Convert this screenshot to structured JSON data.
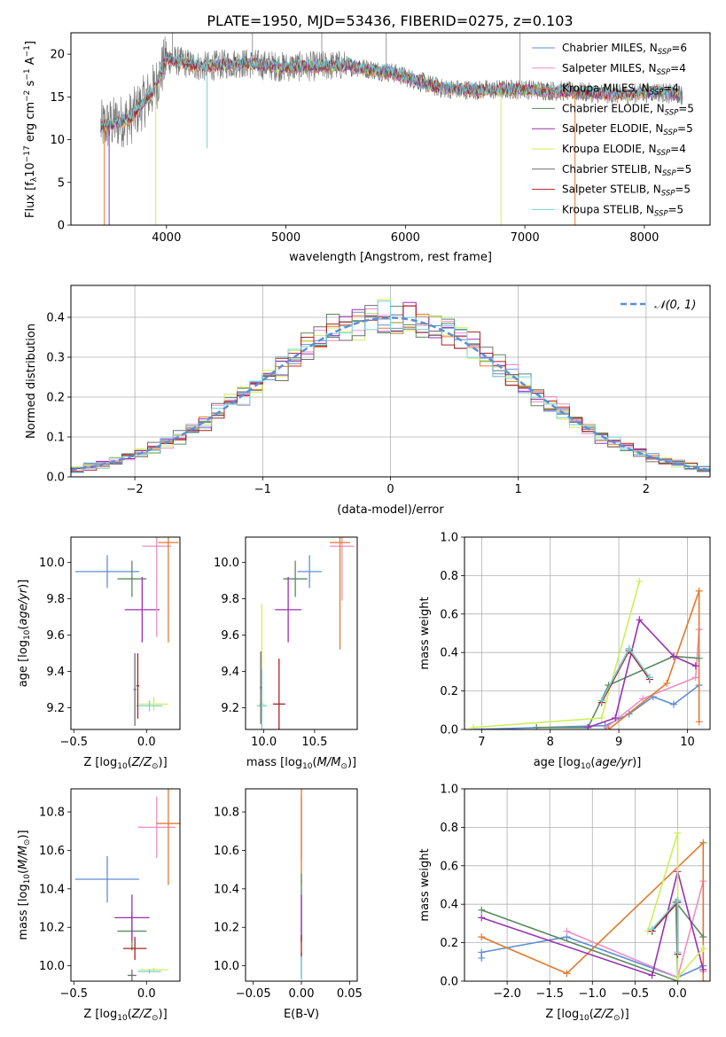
{
  "title": "PLATE=1950, MJD=53436, FIBERID=0275, z=0.103",
  "colors": {
    "Chabrier MILES": "#5f8fd6",
    "Salpeter MILES": "#ef8ec4",
    "Kroupa MILES": "#e27a2d",
    "Chabrier ELODIE": "#5b8a5f",
    "Salpeter ELODIE": "#9a31b1",
    "Kroupa ELODIE": "#cfee5c",
    "Chabrier STELIB": "#6e6e6e",
    "Salpeter STELIB": "#a82222",
    "Kroupa STELIB": "#74d0dc"
  },
  "legend_spectrum": [
    {
      "label": "Chabrier MILES, N",
      "sub": "SSP",
      "suffix": "=6",
      "model": "Chabrier MILES"
    },
    {
      "label": "Salpeter MILES, N",
      "sub": "SSP",
      "suffix": "=4",
      "model": "Salpeter MILES"
    },
    {
      "label": "Kroupa MILES, N",
      "sub": "SSP",
      "suffix": "=4",
      "model": "Kroupa MILES"
    },
    {
      "label": "Chabrier ELODIE, N",
      "sub": "SSP",
      "suffix": "=5",
      "model": "Chabrier ELODIE"
    },
    {
      "label": "Salpeter ELODIE, N",
      "sub": "SSP",
      "suffix": "=5",
      "model": "Salpeter ELODIE"
    },
    {
      "label": "Kroupa ELODIE, N",
      "sub": "SSP",
      "suffix": "=4",
      "model": "Kroupa ELODIE"
    },
    {
      "label": "Chabrier STELIB, N",
      "sub": "SSP",
      "suffix": "=5",
      "model": "Chabrier STELIB"
    },
    {
      "label": "Salpeter STELIB, N",
      "sub": "SSP",
      "suffix": "=5",
      "model": "Salpeter STELIB"
    },
    {
      "label": "Kroupa STELIB, N",
      "sub": "SSP",
      "suffix": "=5",
      "model": "Kroupa STELIB"
    }
  ],
  "chart_data": [
    {
      "id": "spectrum",
      "type": "line",
      "xlabel": "wavelength [Angstrom, rest frame]",
      "ylabel": "Flux [f_λ 10^-17 erg cm^-2 s^-1 A^-1]",
      "xlim": [
        3200,
        8550
      ],
      "ylim": [
        0,
        22.5
      ],
      "xticks": [
        4000,
        5000,
        6000,
        7000,
        8000
      ],
      "yticks": [
        0,
        5,
        10,
        15,
        20
      ],
      "continuum": [
        [
          3450,
          11.5
        ],
        [
          3700,
          12.5
        ],
        [
          3900,
          16
        ],
        [
          4000,
          19.5
        ],
        [
          4300,
          18.5
        ],
        [
          4600,
          19
        ],
        [
          5000,
          18.5
        ],
        [
          5500,
          18.7
        ],
        [
          5900,
          17.8
        ],
        [
          6300,
          16
        ],
        [
          6600,
          15.8
        ],
        [
          7000,
          15.9
        ],
        [
          7400,
          15.6
        ],
        [
          7800,
          15.3
        ],
        [
          8100,
          15.6
        ],
        [
          8300,
          15.2
        ]
      ],
      "spikes_down": [
        [
          3480,
          0
        ],
        [
          3520,
          0
        ],
        [
          3910,
          0
        ],
        [
          4340,
          9
        ],
        [
          6800,
          0
        ],
        [
          7420,
          0
        ]
      ],
      "spikes_up": [
        [
          4050,
          22.5
        ],
        [
          4720,
          22.5
        ],
        [
          5300,
          22.5
        ],
        [
          5840,
          22.5
        ],
        [
          6960,
          22.5
        ]
      ],
      "grid": false
    },
    {
      "id": "residuals",
      "type": "histogram",
      "xlabel": "(data-model)/error",
      "ylabel": "Normed distribution",
      "xlim": [
        -2.5,
        2.5
      ],
      "ylim": [
        0,
        0.48
      ],
      "xticks": [
        -2,
        -1,
        0,
        1,
        2
      ],
      "yticks": [
        0.0,
        0.1,
        0.2,
        0.3,
        0.4
      ],
      "bin_width": 0.1,
      "gaussian_label": "𝒩(0, 1)",
      "gaussian_color": "#5b8fd6",
      "legend": "top-right",
      "grid": true
    },
    {
      "id": "age_vs_Z",
      "type": "scatter",
      "xlabel": "Z [log10(Z/Z⊙)]",
      "ylabel": "age [log10(age/yr)]",
      "xlim": [
        -0.52,
        0.23
      ],
      "ylim": [
        9.08,
        10.14
      ],
      "xticks": [
        -0.5,
        0.0
      ],
      "yticks": [
        9.2,
        9.4,
        9.6,
        9.8,
        10.0
      ],
      "points": [
        {
          "model": "Chabrier MILES",
          "x": -0.27,
          "xerr": 0.22,
          "y": 9.95,
          "yerr": 0.09
        },
        {
          "model": "Chabrier ELODIE",
          "x": -0.1,
          "xerr": 0.1,
          "y": 9.91,
          "yerr": 0.1
        },
        {
          "model": "Salpeter ELODIE",
          "x": -0.03,
          "xerr": 0.12,
          "y": 9.74,
          "yerr": 0.18
        },
        {
          "model": "Salpeter MILES",
          "x": 0.07,
          "xerr": 0.1,
          "y": 10.09,
          "yerr": 0.5
        },
        {
          "model": "Kroupa MILES",
          "x": 0.15,
          "xerr": 0.07,
          "y": 10.11,
          "yerr": 0.55
        },
        {
          "model": "Kroupa ELODIE",
          "x": 0.05,
          "xerr": 0.1,
          "y": 9.22,
          "yerr": 0.04
        },
        {
          "model": "Kroupa STELIB",
          "x": 0.02,
          "xerr": 0.09,
          "y": 9.21,
          "yerr": 0.03
        },
        {
          "model": "Chabrier STELIB",
          "x": -0.08,
          "xerr": 0.01,
          "y": 9.3,
          "yerr": 0.2
        },
        {
          "model": "Salpeter STELIB",
          "x": -0.06,
          "xerr": 0.01,
          "y": 9.32,
          "yerr": 0.18
        }
      ]
    },
    {
      "id": "age_vs_mass",
      "type": "scatter",
      "xlabel": "mass [log10(M/M⊙)]",
      "ylabel": "",
      "xlim": [
        9.82,
        10.92
      ],
      "ylim": [
        9.08,
        10.14
      ],
      "xticks": [
        10.0,
        10.5
      ],
      "yticks": [
        9.2,
        9.4,
        9.6,
        9.8,
        10.0
      ],
      "points": [
        {
          "model": "Chabrier MILES",
          "x": 10.45,
          "xerr": 0.12,
          "y": 9.95,
          "yerr": 0.09
        },
        {
          "model": "Chabrier ELODIE",
          "x": 10.31,
          "xerr": 0.12,
          "y": 9.91,
          "yerr": 0.1
        },
        {
          "model": "Salpeter ELODIE",
          "x": 10.24,
          "xerr": 0.13,
          "y": 9.74,
          "yerr": 0.18
        },
        {
          "model": "Salpeter MILES",
          "x": 10.77,
          "xerr": 0.12,
          "y": 10.09,
          "yerr": 0.3
        },
        {
          "model": "Kroupa MILES",
          "x": 10.75,
          "xerr": 0.1,
          "y": 10.11,
          "yerr": 0.59
        },
        {
          "model": "Kroupa ELODIE",
          "x": 9.98,
          "xerr": 0.03,
          "y": 9.22,
          "yerr": 0.55
        },
        {
          "model": "Kroupa STELIB",
          "x": 9.98,
          "xerr": 0.05,
          "y": 9.21,
          "yerr": 0.2
        },
        {
          "model": "Chabrier STELIB",
          "x": 9.97,
          "xerr": 0.01,
          "y": 9.31,
          "yerr": 0.2
        },
        {
          "model": "Salpeter STELIB",
          "x": 10.15,
          "xerr": 0.06,
          "y": 9.22,
          "yerr": 0.25
        }
      ]
    },
    {
      "id": "massweight_vs_age",
      "type": "line",
      "xlabel": "age [log10(age/yr)]",
      "ylabel": "mass weight",
      "xlim": [
        6.75,
        10.33
      ],
      "ylim": [
        0,
        1
      ],
      "xticks": [
        7,
        8,
        9,
        10
      ],
      "yticks": [
        0.0,
        0.2,
        0.4,
        0.6,
        0.8,
        1.0
      ],
      "grid": true,
      "series": [
        {
          "model": "Chabrier MILES",
          "points": [
            [
              6.88,
              0.0
            ],
            [
              8.8,
              0.02
            ],
            [
              9.15,
              0.08
            ],
            [
              9.5,
              0.17
            ],
            [
              9.8,
              0.13
            ],
            [
              10.17,
              0.23
            ]
          ]
        },
        {
          "model": "Salpeter MILES",
          "points": [
            [
              8.82,
              0.01
            ],
            [
              9.35,
              0.16
            ],
            [
              10.12,
              0.27
            ],
            [
              10.17,
              0.52
            ]
          ]
        },
        {
          "model": "Kroupa MILES",
          "points": [
            [
              8.85,
              0.0
            ],
            [
              9.7,
              0.24
            ],
            [
              10.17,
              0.72
            ],
            [
              10.17,
              0.04
            ]
          ]
        },
        {
          "model": "Chabrier ELODIE",
          "points": [
            [
              7.8,
              0.01
            ],
            [
              8.55,
              0.01
            ],
            [
              8.85,
              0.23
            ],
            [
              9.8,
              0.38
            ],
            [
              10.17,
              0.37
            ]
          ]
        },
        {
          "model": "Salpeter ELODIE",
          "points": [
            [
              8.55,
              0.01
            ],
            [
              8.95,
              0.06
            ],
            [
              9.3,
              0.57
            ],
            [
              9.8,
              0.38
            ],
            [
              10.12,
              0.33
            ]
          ]
        },
        {
          "model": "Kroupa ELODIE",
          "points": [
            [
              6.88,
              0.01
            ],
            [
              8.75,
              0.06
            ],
            [
              9.3,
              0.77
            ]
          ]
        },
        {
          "model": "Chabrier STELIB",
          "points": [
            [
              8.75,
              0.15
            ],
            [
              9.15,
              0.42
            ],
            [
              9.45,
              0.27
            ]
          ]
        },
        {
          "model": "Salpeter STELIB",
          "points": [
            [
              8.75,
              0.14
            ],
            [
              9.15,
              0.41
            ],
            [
              9.45,
              0.26
            ]
          ]
        },
        {
          "model": "Kroupa STELIB",
          "points": [
            [
              8.75,
              0.15
            ],
            [
              9.15,
              0.42
            ],
            [
              9.45,
              0.27
            ]
          ]
        }
      ]
    },
    {
      "id": "mass_vs_Z",
      "type": "scatter",
      "xlabel": "Z [log10(Z/Z⊙)]",
      "ylabel": "mass [log10(M/M⊙)]",
      "xlim": [
        -0.52,
        0.23
      ],
      "ylim": [
        9.92,
        10.92
      ],
      "xticks": [
        -0.5,
        0.0
      ],
      "yticks": [
        10.0,
        10.2,
        10.4,
        10.6,
        10.8
      ],
      "points": [
        {
          "model": "Chabrier MILES",
          "x": -0.27,
          "xerr": 0.22,
          "y": 10.45,
          "yerr": 0.12
        },
        {
          "model": "Chabrier ELODIE",
          "x": -0.1,
          "xerr": 0.1,
          "y": 10.18,
          "yerr": 0.1
        },
        {
          "model": "Salpeter ELODIE",
          "x": -0.1,
          "xerr": 0.12,
          "y": 10.25,
          "yerr": 0.12
        },
        {
          "model": "Salpeter MILES",
          "x": 0.07,
          "xerr": 0.13,
          "y": 10.72,
          "yerr": 0.16
        },
        {
          "model": "Kroupa MILES",
          "x": 0.15,
          "xerr": 0.08,
          "y": 10.74,
          "yerr": 0.32
        },
        {
          "model": "Kroupa ELODIE",
          "x": 0.05,
          "xerr": 0.1,
          "y": 9.98,
          "yerr": 0.01
        },
        {
          "model": "Kroupa STELIB",
          "x": 0.02,
          "xerr": 0.08,
          "y": 9.97,
          "yerr": 0.01
        },
        {
          "model": "Chabrier STELIB",
          "x": -0.1,
          "xerr": 0.03,
          "y": 9.95,
          "yerr": 0.03
        },
        {
          "model": "Salpeter STELIB",
          "x": -0.08,
          "xerr": 0.08,
          "y": 10.09,
          "yerr": 0.06
        }
      ]
    },
    {
      "id": "mass_vs_EBV",
      "type": "scatter",
      "xlabel": "E(B-V)",
      "ylabel": "",
      "xlim": [
        -0.058,
        0.058
      ],
      "ylim": [
        9.92,
        10.92
      ],
      "xticks": [
        -0.05,
        0.0,
        0.05
      ],
      "yticks": [
        10.0,
        10.2,
        10.4,
        10.6,
        10.8
      ],
      "points": [
        {
          "model": "Salpeter MILES",
          "x": 0.0,
          "y": 10.72,
          "yerr": 0.17
        },
        {
          "model": "Kroupa MILES",
          "x": 0.0,
          "y": 10.74,
          "yerr": 0.32
        },
        {
          "model": "Chabrier ELODIE",
          "x": 0.0,
          "y": 10.3,
          "yerr": 0.18
        },
        {
          "model": "Salpeter ELODIE",
          "x": 0.0,
          "y": 10.25,
          "yerr": 0.12
        },
        {
          "model": "Chabrier STELIB",
          "x": 0.0,
          "y": 10.0,
          "yerr": 0.07
        },
        {
          "model": "Salpeter STELIB",
          "x": 0.0,
          "y": 10.1,
          "yerr": 0.06
        },
        {
          "model": "Kroupa STELIB",
          "x": 0.0,
          "y": 9.99,
          "yerr": 0.06
        }
      ]
    },
    {
      "id": "massweight_vs_Z",
      "type": "line",
      "xlabel": "Z [log10(Z/Z⊙)]",
      "ylabel": "mass weight",
      "xlim": [
        -2.5,
        0.38
      ],
      "ylim": [
        0,
        1
      ],
      "xticks": [
        -2.0,
        -1.5,
        -1.0,
        -0.5,
        0.0
      ],
      "yticks": [
        0.0,
        0.2,
        0.4,
        0.6,
        0.8,
        1.0
      ],
      "grid": true,
      "series": [
        {
          "model": "Chabrier MILES",
          "points": [
            [
              -2.3,
              0.12
            ],
            [
              -2.3,
              0.15
            ],
            [
              -1.3,
              0.23
            ],
            [
              0.0,
              0.02
            ],
            [
              0.3,
              0.08
            ]
          ]
        },
        {
          "model": "Salpeter MILES",
          "points": [
            [
              -1.3,
              0.26
            ],
            [
              0.0,
              0.02
            ],
            [
              0.3,
              0.52
            ],
            [
              0.3,
              0.05
            ]
          ]
        },
        {
          "model": "Kroupa MILES",
          "points": [
            [
              -2.3,
              0.23
            ],
            [
              -1.3,
              0.04
            ],
            [
              0.3,
              0.72
            ],
            [
              0.3,
              0.0
            ]
          ]
        },
        {
          "model": "Chabrier ELODIE",
          "points": [
            [
              -2.3,
              0.37
            ],
            [
              0.0,
              0.0
            ],
            [
              -0.02,
              0.41
            ],
            [
              0.3,
              0.23
            ]
          ]
        },
        {
          "model": "Salpeter ELODIE",
          "points": [
            [
              -2.3,
              0.33
            ],
            [
              -0.3,
              0.03
            ],
            [
              0.0,
              0.57
            ],
            [
              0.3,
              0.06
            ]
          ]
        },
        {
          "model": "Kroupa ELODIE",
          "points": [
            [
              -0.35,
              0.26
            ],
            [
              0.0,
              0.77
            ],
            [
              0.0,
              0.02
            ],
            [
              0.3,
              0.17
            ]
          ]
        },
        {
          "model": "Chabrier STELIB",
          "points": [
            [
              -0.3,
              0.26
            ],
            [
              0.0,
              0.42
            ],
            [
              0.0,
              0.15
            ]
          ]
        },
        {
          "model": "Salpeter STELIB",
          "points": [
            [
              -0.3,
              0.26
            ],
            [
              0.0,
              0.41
            ],
            [
              0.0,
              0.14
            ]
          ]
        },
        {
          "model": "Kroupa STELIB",
          "points": [
            [
              -0.3,
              0.27
            ],
            [
              0.0,
              0.42
            ],
            [
              0.0,
              0.15
            ]
          ]
        }
      ]
    }
  ]
}
